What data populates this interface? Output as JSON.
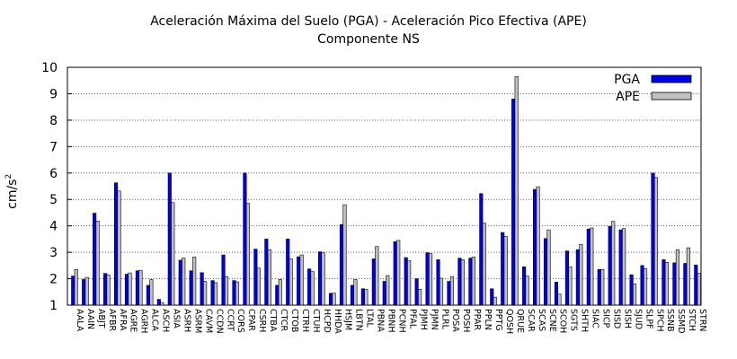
{
  "chart_data": {
    "type": "bar",
    "title": "Aceleración Máxima del Suelo (PGA) -  Aceleración Pico Efectiva (APE)",
    "subtitle": "Componente NS",
    "ylabel": "cm/s",
    "ylabel_exp": "2",
    "xlabel": "",
    "ylim": [
      1,
      10
    ],
    "yticks": [
      1,
      2,
      3,
      4,
      5,
      6,
      7,
      8,
      9,
      10
    ],
    "grid": true,
    "legend_position": "top-right",
    "categories": [
      "AALA",
      "AAIN",
      "ABJT",
      "AFBR",
      "AFRA",
      "AGRE",
      "AGRH",
      "ALCA",
      "ASCH",
      "ASIA",
      "ASRH",
      "ASRM",
      "CAVM",
      "CCDN",
      "CCRT",
      "CORS",
      "CPAR",
      "CSRH",
      "CTBA",
      "CTCR",
      "CTOB",
      "CTRH",
      "CTUH",
      "HCPD",
      "HHDA",
      "HSJM",
      "LBTN",
      "LTAL",
      "PBNA",
      "PBNH",
      "PCNH",
      "PFAL",
      "PJMH",
      "PJMN",
      "PLRL",
      "POSA",
      "POSH",
      "PPAR",
      "PPLN",
      "PPTG",
      "QOSH",
      "QRUE",
      "SCAR",
      "SCAS",
      "SCNE",
      "SCOH",
      "SGTS",
      "SHTH",
      "SIAC",
      "SICP",
      "SISD",
      "SISH",
      "SJUD",
      "SLPF",
      "SPCH",
      "SSNB",
      "SSMD",
      "STCH",
      "STRN"
    ],
    "series": [
      {
        "name": "PGA",
        "color": "#0000ee",
        "values": [
          2.1,
          1.97,
          4.48,
          2.2,
          5.63,
          2.17,
          2.3,
          1.75,
          1.22,
          6.0,
          2.7,
          2.3,
          2.23,
          1.93,
          2.9,
          1.93,
          6.0,
          3.12,
          3.5,
          1.75,
          3.5,
          2.83,
          2.37,
          3.02,
          1.45,
          4.05,
          1.75,
          1.62,
          2.75,
          1.9,
          3.4,
          2.8,
          2.0,
          2.98,
          2.72,
          1.9,
          2.78,
          2.78,
          5.22,
          1.62,
          3.75,
          8.8,
          2.45,
          5.38,
          3.52,
          1.87,
          3.05,
          3.1,
          3.88,
          2.35,
          3.98,
          3.85,
          2.15,
          2.5,
          6.0,
          2.72,
          2.6,
          2.58,
          2.52
        ]
      },
      {
        "name": "APE",
        "color": "#c0c0c0",
        "values": [
          2.35,
          2.05,
          4.18,
          2.15,
          5.32,
          2.22,
          2.32,
          1.97,
          1.1,
          4.88,
          2.78,
          2.82,
          1.9,
          1.85,
          2.08,
          1.88,
          4.85,
          2.4,
          3.1,
          1.97,
          2.75,
          2.9,
          2.27,
          2.98,
          1.45,
          4.8,
          1.97,
          1.6,
          3.22,
          2.12,
          3.45,
          2.68,
          1.6,
          2.95,
          2.02,
          2.08,
          2.72,
          2.82,
          4.1,
          1.3,
          3.6,
          9.65,
          2.1,
          5.48,
          3.85,
          1.42,
          2.45,
          3.3,
          3.92,
          2.35,
          4.17,
          3.9,
          1.8,
          2.38,
          5.83,
          2.62,
          3.1,
          3.17,
          2.2
        ]
      }
    ]
  }
}
